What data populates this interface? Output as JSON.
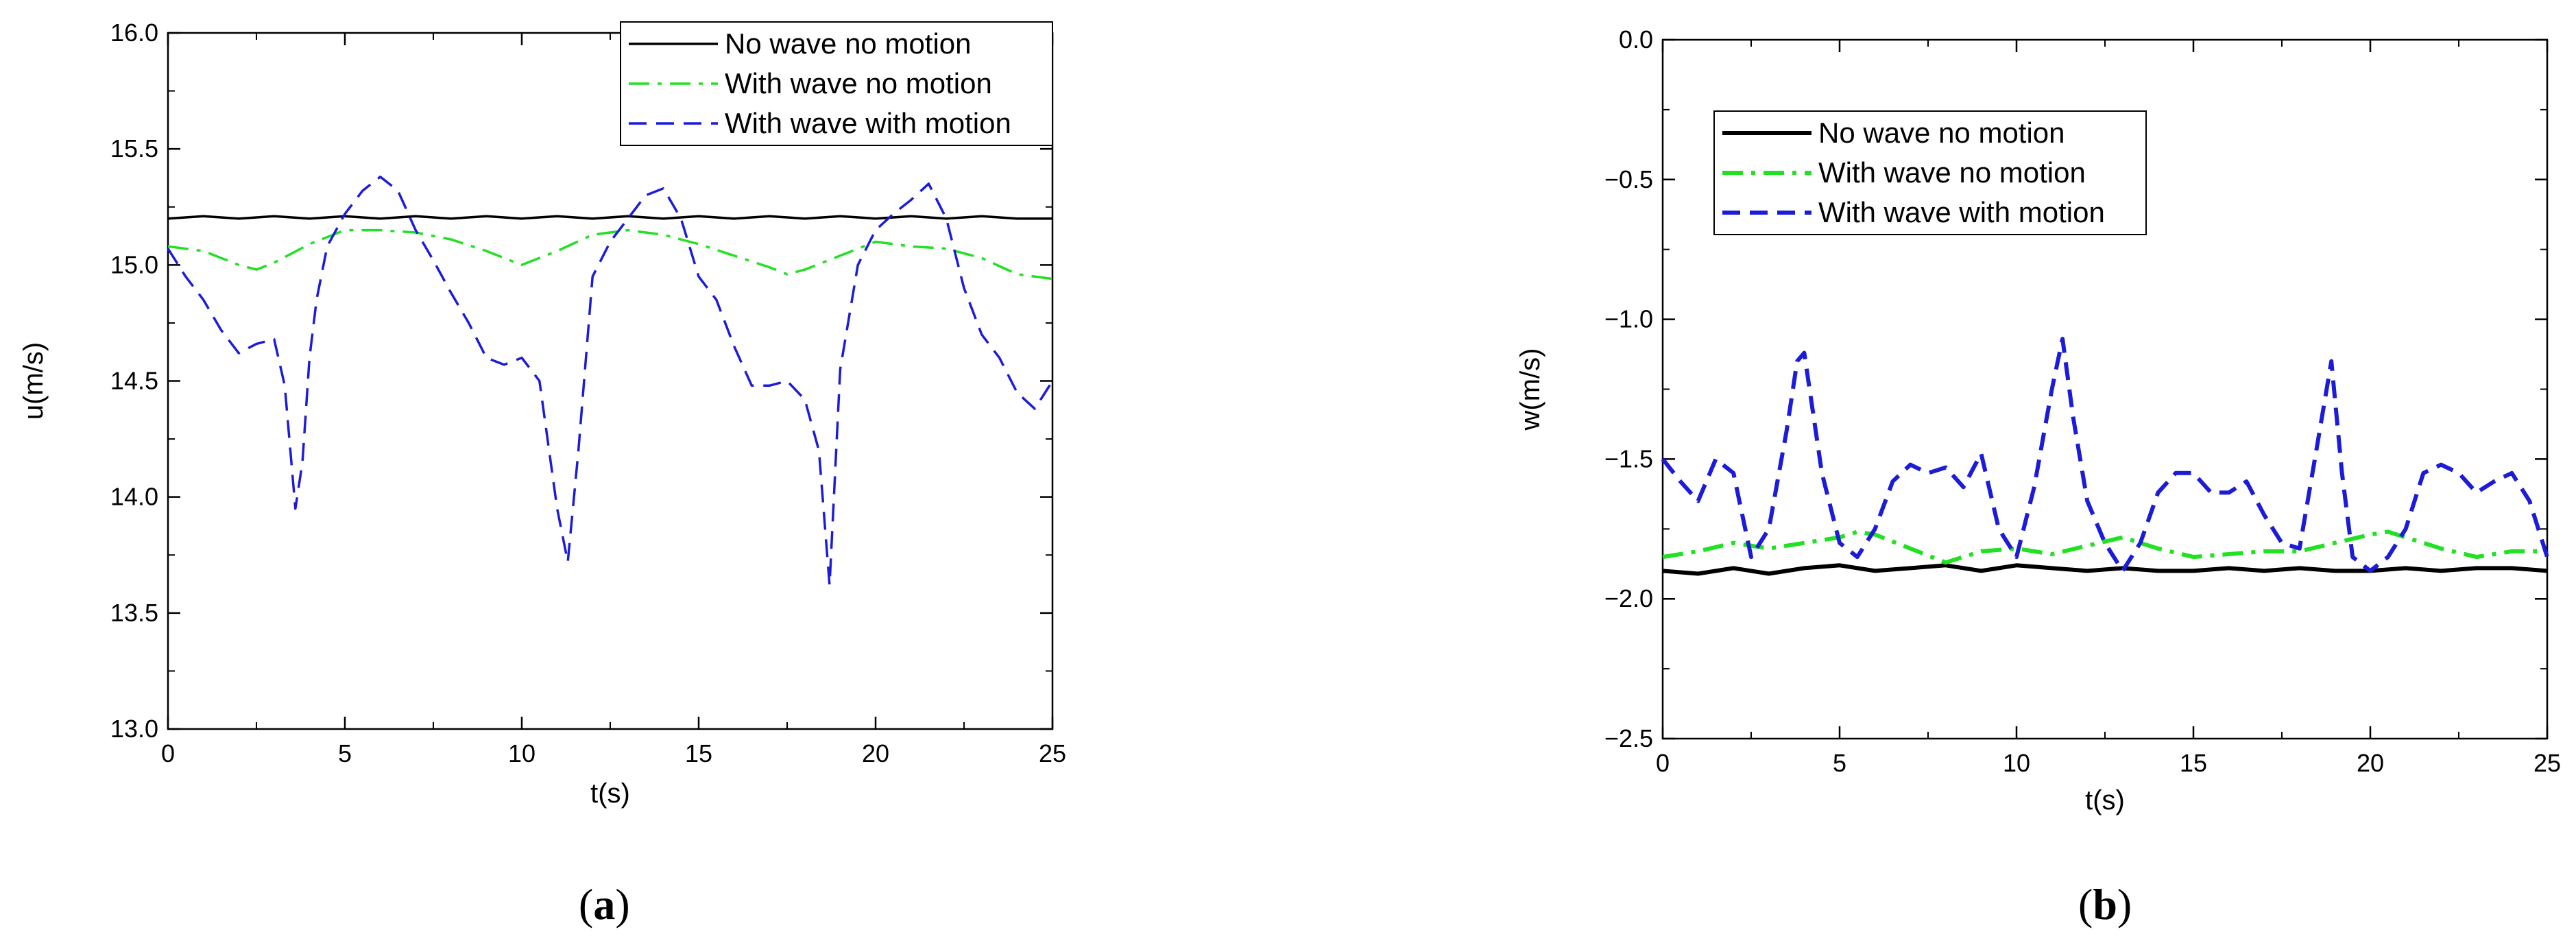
{
  "chart_data": [
    {
      "type": "line",
      "panel_label": "(a)",
      "xlabel": "t(s)",
      "ylabel": "u(m/s)",
      "xlim": [
        0,
        25
      ],
      "ylim": [
        13.0,
        16.0
      ],
      "xticks": [
        "0",
        "5",
        "10",
        "15",
        "20",
        "25"
      ],
      "yticks": [
        "13.0",
        "13.5",
        "14.0",
        "14.5",
        "15.0",
        "15.5",
        "16.0"
      ],
      "legend_position": "top-right",
      "grid": false,
      "series": [
        {
          "name": "No wave no motion",
          "color": "#000000",
          "style": "solid",
          "x": [
            0,
            1,
            2,
            3,
            4,
            5,
            6,
            7,
            8,
            9,
            10,
            11,
            12,
            13,
            14,
            15,
            16,
            17,
            18,
            19,
            20,
            21,
            22,
            23,
            24,
            25
          ],
          "y": [
            15.2,
            15.21,
            15.2,
            15.21,
            15.2,
            15.21,
            15.2,
            15.21,
            15.2,
            15.21,
            15.2,
            15.21,
            15.2,
            15.21,
            15.2,
            15.21,
            15.2,
            15.21,
            15.2,
            15.21,
            15.2,
            15.21,
            15.2,
            15.21,
            15.2,
            15.2
          ]
        },
        {
          "name": "With wave no motion",
          "color": "#22e022",
          "style": "dashdot",
          "x": [
            0,
            1,
            2,
            2.5,
            3,
            4,
            5,
            6,
            7,
            8,
            9,
            10,
            11,
            12,
            13,
            14,
            15,
            16,
            17,
            17.5,
            18,
            19,
            20,
            21,
            22,
            23,
            24,
            25
          ],
          "y": [
            15.08,
            15.06,
            15.0,
            14.98,
            15.01,
            15.09,
            15.15,
            15.15,
            15.14,
            15.11,
            15.06,
            15.0,
            15.06,
            15.13,
            15.15,
            15.13,
            15.09,
            15.04,
            14.99,
            14.96,
            14.98,
            15.04,
            15.1,
            15.08,
            15.07,
            15.03,
            14.96,
            14.94
          ]
        },
        {
          "name": "With wave with motion",
          "color": "#1c1cd8",
          "style": "dashed",
          "x": [
            0,
            0.5,
            1,
            1.5,
            2,
            2.5,
            3,
            3.3,
            3.6,
            3.8,
            4,
            4.2,
            4.5,
            5,
            5.5,
            6,
            6.5,
            7,
            7.5,
            8,
            8.5,
            9,
            9.5,
            10,
            10.5,
            11,
            11.3,
            11.6,
            12,
            12.5,
            13,
            13.5,
            14,
            14.5,
            15,
            15.5,
            16,
            16.5,
            17,
            17.5,
            18,
            18.4,
            18.7,
            19,
            19.5,
            20,
            20.5,
            21,
            21.5,
            22,
            22.5,
            23,
            23.5,
            24,
            24.5,
            25
          ],
          "y": [
            15.07,
            14.95,
            14.85,
            14.72,
            14.62,
            14.66,
            14.68,
            14.48,
            13.95,
            14.15,
            14.6,
            14.85,
            15.08,
            15.22,
            15.32,
            15.38,
            15.32,
            15.15,
            15.02,
            14.88,
            14.75,
            14.6,
            14.57,
            14.6,
            14.5,
            13.95,
            13.72,
            14.2,
            14.95,
            15.1,
            15.2,
            15.3,
            15.33,
            15.2,
            14.95,
            14.85,
            14.65,
            14.48,
            14.48,
            14.5,
            14.42,
            14.2,
            13.62,
            14.55,
            15.0,
            15.15,
            15.22,
            15.28,
            15.35,
            15.2,
            14.9,
            14.7,
            14.6,
            14.45,
            14.38,
            14.5
          ]
        }
      ]
    },
    {
      "type": "line",
      "panel_label": "(b)",
      "xlabel": "t(s)",
      "ylabel": "w(m/s)",
      "xlim": [
        0,
        25
      ],
      "ylim": [
        -2.5,
        0.0
      ],
      "xticks": [
        "0",
        "5",
        "10",
        "15",
        "20",
        "25"
      ],
      "yticks": [
        "−2.5",
        "−2.0",
        "−1.5",
        "−1.0",
        "−0.5",
        "0.0"
      ],
      "legend_position": "top-left",
      "grid": false,
      "series": [
        {
          "name": "No wave no motion",
          "color": "#000000",
          "style": "solid",
          "x": [
            0,
            1,
            2,
            3,
            4,
            5,
            6,
            7,
            8,
            9,
            10,
            11,
            12,
            13,
            14,
            15,
            16,
            17,
            18,
            19,
            20,
            21,
            22,
            23,
            24,
            25
          ],
          "y": [
            -1.9,
            -1.91,
            -1.89,
            -1.91,
            -1.89,
            -1.88,
            -1.9,
            -1.89,
            -1.88,
            -1.9,
            -1.88,
            -1.89,
            -1.9,
            -1.89,
            -1.9,
            -1.9,
            -1.89,
            -1.9,
            -1.89,
            -1.9,
            -1.9,
            -1.89,
            -1.9,
            -1.89,
            -1.89,
            -1.9
          ]
        },
        {
          "name": "With wave no motion",
          "color": "#22e022",
          "style": "dashdot",
          "x": [
            0,
            1,
            2,
            3,
            4,
            5,
            5.5,
            6,
            7,
            8,
            9,
            10,
            11,
            12,
            13,
            14,
            15,
            16,
            17,
            18,
            19,
            20,
            20.5,
            21,
            22,
            23,
            24,
            25
          ],
          "y": [
            -1.85,
            -1.83,
            -1.8,
            -1.82,
            -1.8,
            -1.78,
            -1.76,
            -1.77,
            -1.82,
            -1.87,
            -1.83,
            -1.82,
            -1.84,
            -1.81,
            -1.78,
            -1.82,
            -1.85,
            -1.84,
            -1.83,
            -1.83,
            -1.8,
            -1.77,
            -1.76,
            -1.78,
            -1.82,
            -1.85,
            -1.83,
            -1.83
          ]
        },
        {
          "name": "With wave with motion",
          "color": "#1c1cd8",
          "style": "dashed",
          "x": [
            0,
            0.5,
            1,
            1.5,
            2,
            2.5,
            3,
            3.5,
            3.8,
            4,
            4.5,
            5,
            5.5,
            6,
            6.5,
            7,
            7.5,
            8,
            8.5,
            9,
            9.5,
            10,
            10.5,
            11,
            11.3,
            11.6,
            12,
            12.5,
            13,
            13.5,
            14,
            14.5,
            15,
            15.5,
            16,
            16.5,
            17,
            17.5,
            18,
            18.5,
            18.9,
            19.2,
            19.5,
            20,
            20.5,
            21,
            21.5,
            22,
            22.5,
            23,
            23.5,
            24,
            24.5,
            25
          ],
          "y": [
            -1.5,
            -1.58,
            -1.65,
            -1.5,
            -1.55,
            -1.85,
            -1.75,
            -1.4,
            -1.15,
            -1.12,
            -1.55,
            -1.8,
            -1.85,
            -1.75,
            -1.58,
            -1.52,
            -1.55,
            -1.53,
            -1.6,
            -1.48,
            -1.75,
            -1.85,
            -1.6,
            -1.25,
            -1.07,
            -1.35,
            -1.65,
            -1.8,
            -1.9,
            -1.8,
            -1.62,
            -1.55,
            -1.55,
            -1.62,
            -1.62,
            -1.58,
            -1.7,
            -1.8,
            -1.82,
            -1.45,
            -1.15,
            -1.55,
            -1.85,
            -1.9,
            -1.85,
            -1.75,
            -1.55,
            -1.52,
            -1.55,
            -1.62,
            -1.58,
            -1.55,
            -1.65,
            -1.85
          ]
        }
      ]
    }
  ]
}
